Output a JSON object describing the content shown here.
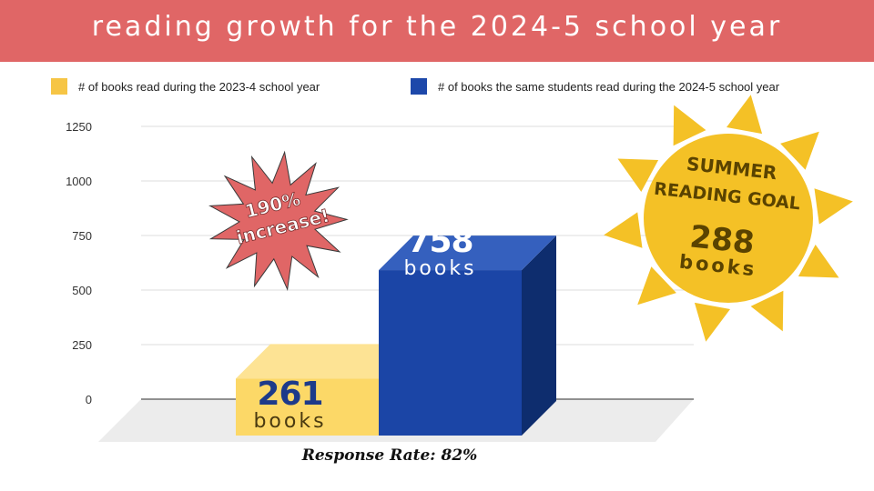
{
  "title": "reading growth for the 2024-5 school year",
  "colors": {
    "title_bar": "#e06666",
    "series_2023": "#f6c545",
    "series_2024": "#1d48aa",
    "burst": "#e06666",
    "sun": "#f4c126"
  },
  "legend": [
    {
      "label": "# of books read during the 2023-4 school year",
      "color": "#f6c545"
    },
    {
      "label": "# of books the same students read during the 2024-5 school year",
      "color": "#1d48aa"
    }
  ],
  "chart_data": {
    "type": "bar",
    "series": [
      {
        "name": "# of books read during the 2023-4 school year",
        "values": [
          261
        ]
      },
      {
        "name": "# of books the same students read during the 2024-5 school year",
        "values": [
          758
        ]
      }
    ],
    "ylim": [
      0,
      1250
    ],
    "yticks": [
      "0",
      "250",
      "500",
      "750",
      "1000",
      "1250"
    ],
    "grid": true,
    "legend_position": "top",
    "bar_labels": [
      {
        "number": "261",
        "unit": "books"
      },
      {
        "number": "758",
        "unit": "books"
      }
    ]
  },
  "callouts": {
    "burst_line1": "190%",
    "burst_line2": "increase!",
    "sun_line1": "SUMMER",
    "sun_line2": "READING GOAL",
    "sun_value": "288",
    "sun_unit": "books"
  },
  "footer": {
    "response_rate": "Response Rate: 82%"
  }
}
